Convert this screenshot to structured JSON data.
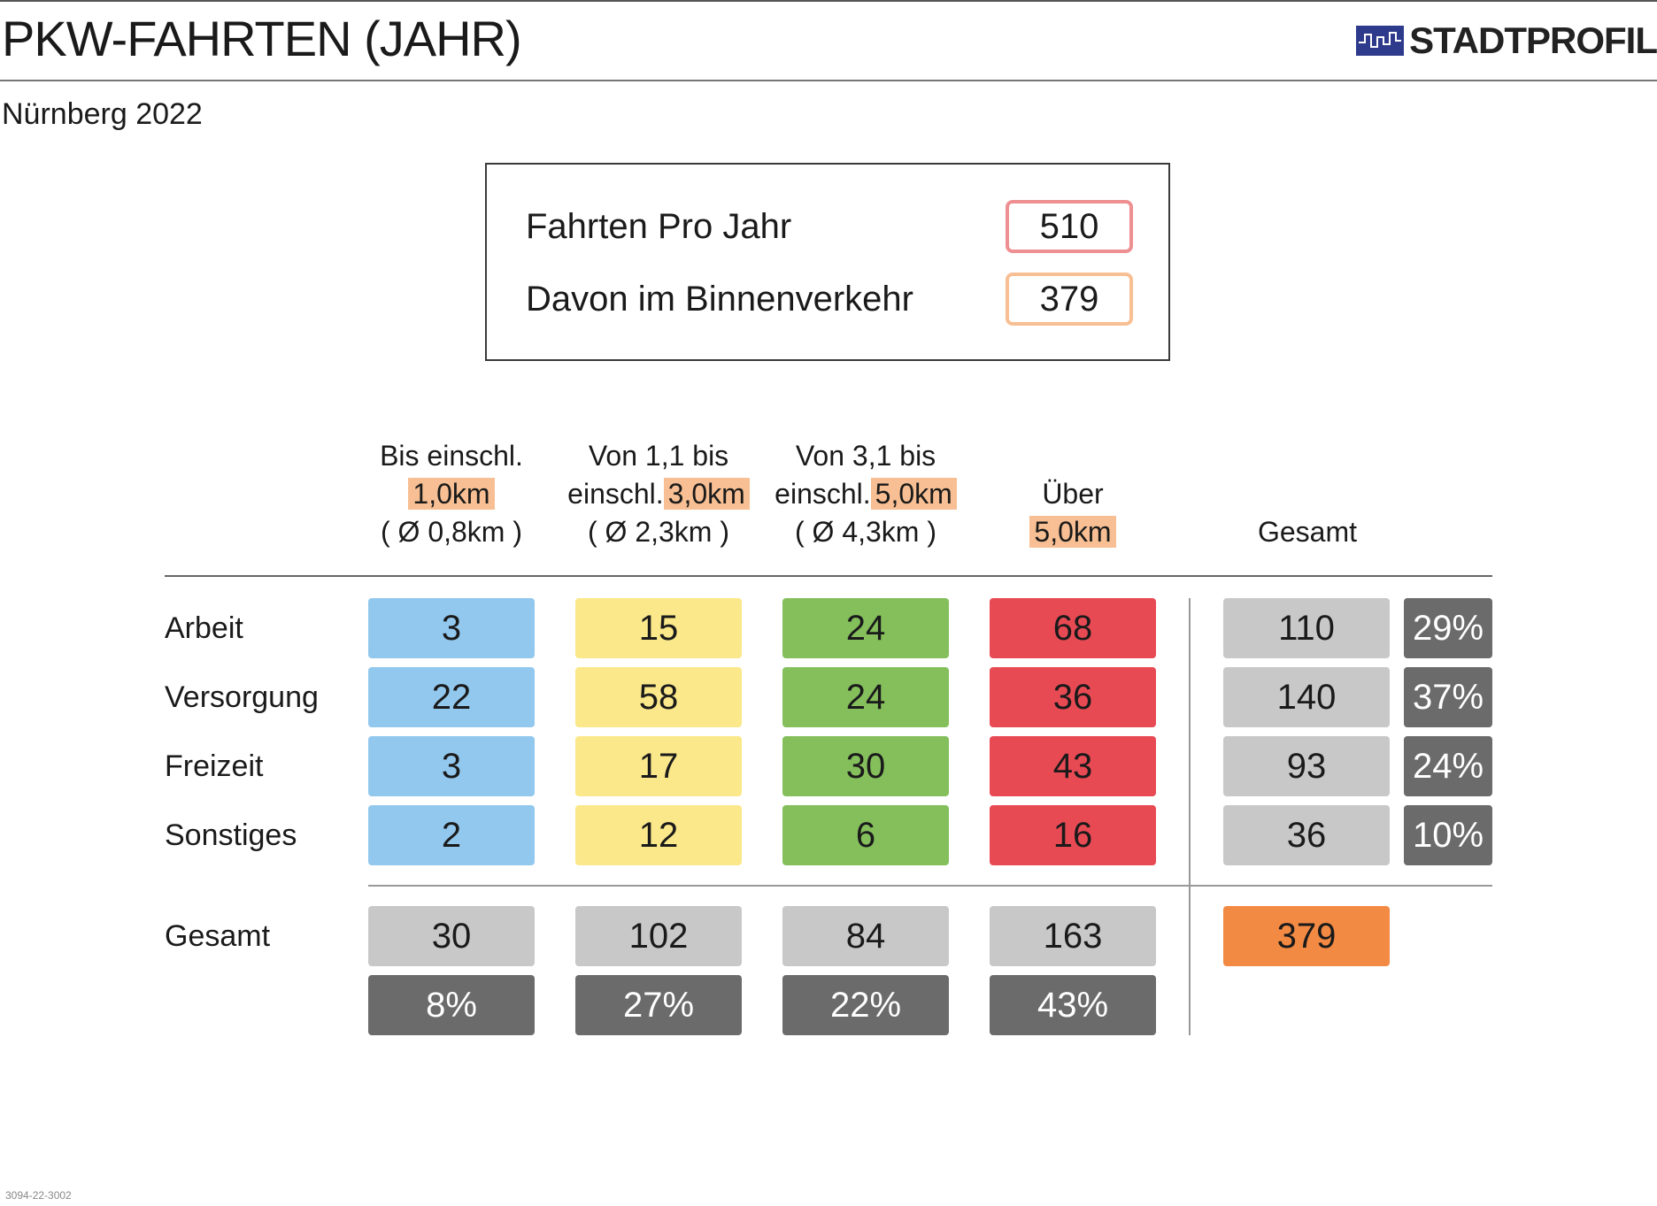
{
  "title": "PKW-FAHRTEN (JAHR)",
  "subtitle": "Nürnberg 2022",
  "logo": {
    "text": "STADTPROFIL",
    "icon": "city-skyline-icon",
    "color": "#2e3a8c"
  },
  "summary": {
    "trips_per_year_label": "Fahrten Pro Jahr",
    "trips_per_year_value": "510",
    "inner_traffic_label": "Davon im Binnenverkehr",
    "inner_traffic_value": "379",
    "colors": {
      "trips_per_year": "#ee8f91",
      "inner_traffic": "#f7bf93"
    }
  },
  "column_headers": [
    {
      "line1": "Bis einschl.",
      "line2_prefix": "",
      "line2_highlight": "1,0km",
      "line3": "( Ø 0,8km )"
    },
    {
      "line1": "Von 1,1 bis",
      "line2_prefix": "einschl.",
      "line2_highlight": "3,0km",
      "line3": "( Ø 2,3km )"
    },
    {
      "line1": "Von 3,1 bis",
      "line2_prefix": "einschl.",
      "line2_highlight": "5,0km",
      "line3": "( Ø 4,3km )"
    },
    {
      "line1": "",
      "line2_prefix": "Über",
      "line2_highlight": "",
      "line3": "5,0km"
    }
  ],
  "total_header": "Gesamt",
  "total_row_label": "Gesamt",
  "colors": {
    "distance": [
      "#92c8ee",
      "#fbe88b",
      "#84bf5c",
      "#e84a54"
    ],
    "total_light": "#c8c8c8",
    "total_dark": "#6b6b6b",
    "grand_total": "#f28a44",
    "highlight": "#f7bf93"
  },
  "chart_data": {
    "type": "table",
    "title": "PKW-FAHRTEN (JAHR)",
    "subtitle": "Nürnberg 2022",
    "rows": [
      "Arbeit",
      "Versorgung",
      "Freizeit",
      "Sonstiges"
    ],
    "columns": [
      "Bis einschl. 1,0km ( Ø 0,8km )",
      "Von 1,1 bis einschl. 3,0km ( Ø 2,3km )",
      "Von 3,1 bis einschl. 5,0km ( Ø 4,3km )",
      "Über 5,0km"
    ],
    "values": [
      [
        "3",
        "15",
        "24",
        "68"
      ],
      [
        "22",
        "58",
        "24",
        "36"
      ],
      [
        "3",
        "17",
        "30",
        "43"
      ],
      [
        "2",
        "12",
        "6",
        "16"
      ]
    ],
    "row_totals": [
      "110",
      "140",
      "93",
      "36"
    ],
    "row_shares": [
      "29%",
      "37%",
      "24%",
      "10%"
    ],
    "column_totals": [
      "30",
      "102",
      "84",
      "163"
    ],
    "column_shares": [
      "8%",
      "27%",
      "22%",
      "43%"
    ],
    "grand_total": "379"
  },
  "footnote": "3094-22-3002"
}
